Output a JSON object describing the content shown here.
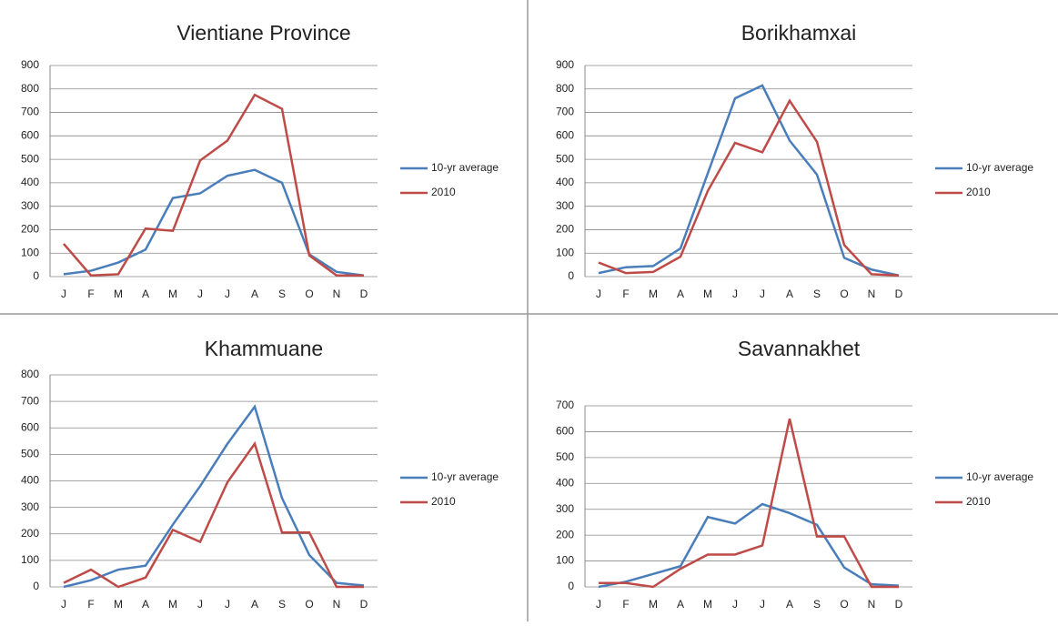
{
  "chart_data": [
    {
      "type": "line",
      "title": "Vientiane Province",
      "categories": [
        "J",
        "F",
        "M",
        "A",
        "M",
        "J",
        "J",
        "A",
        "S",
        "O",
        "N",
        "D"
      ],
      "series": [
        {
          "name": "10-yr average",
          "color": "#4a7ebb",
          "values": [
            10,
            25,
            60,
            115,
            335,
            355,
            430,
            455,
            400,
            95,
            20,
            5
          ]
        },
        {
          "name": "2010",
          "color": "#be4b48",
          "values": [
            140,
            5,
            10,
            205,
            195,
            495,
            580,
            775,
            715,
            90,
            5,
            5
          ]
        }
      ],
      "ylim": [
        0,
        900
      ],
      "yticks": [
        0,
        100,
        200,
        300,
        400,
        500,
        600,
        700,
        800,
        900
      ],
      "grid": true,
      "legend": "right"
    },
    {
      "type": "line",
      "title": "Borikhamxai",
      "categories": [
        "J",
        "F",
        "M",
        "A",
        "M",
        "J",
        "J",
        "A",
        "S",
        "O",
        "N",
        "D"
      ],
      "series": [
        {
          "name": "10-yr average",
          "color": "#4a7ebb",
          "values": [
            15,
            40,
            45,
            120,
            440,
            760,
            815,
            580,
            435,
            80,
            30,
            5
          ]
        },
        {
          "name": "2010",
          "color": "#be4b48",
          "values": [
            60,
            15,
            20,
            85,
            365,
            570,
            530,
            750,
            575,
            135,
            10,
            5
          ]
        }
      ],
      "ylim": [
        0,
        900
      ],
      "yticks": [
        0,
        100,
        200,
        300,
        400,
        500,
        600,
        700,
        800,
        900
      ],
      "grid": true,
      "legend": "right"
    },
    {
      "type": "line",
      "title": "Khammuane",
      "categories": [
        "J",
        "F",
        "M",
        "A",
        "M",
        "J",
        "J",
        "A",
        "S",
        "O",
        "N",
        "D"
      ],
      "series": [
        {
          "name": "10-yr average",
          "color": "#4a7ebb",
          "values": [
            0,
            25,
            65,
            80,
            235,
            380,
            540,
            680,
            335,
            120,
            15,
            5
          ]
        },
        {
          "name": "2010",
          "color": "#be4b48",
          "values": [
            15,
            65,
            0,
            35,
            215,
            170,
            395,
            540,
            205,
            205,
            0,
            0
          ]
        }
      ],
      "ylim": [
        0,
        800
      ],
      "yticks": [
        0,
        100,
        200,
        300,
        400,
        500,
        600,
        700,
        800
      ],
      "grid": true,
      "legend": "right"
    },
    {
      "type": "line",
      "title": "Savannakhet",
      "categories": [
        "J",
        "F",
        "M",
        "A",
        "M",
        "J",
        "J",
        "A",
        "S",
        "O",
        "N",
        "D"
      ],
      "series": [
        {
          "name": "10-yr average",
          "color": "#4a7ebb",
          "values": [
            0,
            20,
            50,
            80,
            270,
            245,
            320,
            285,
            240,
            75,
            10,
            5
          ]
        },
        {
          "name": "2010",
          "color": "#be4b48",
          "values": [
            15,
            15,
            0,
            70,
            125,
            125,
            160,
            650,
            195,
            195,
            0,
            0
          ]
        }
      ],
      "ylim": [
        0,
        700
      ],
      "yticks": [
        0,
        100,
        200,
        300,
        400,
        500,
        600,
        700
      ],
      "grid": true,
      "legend": "right"
    }
  ]
}
